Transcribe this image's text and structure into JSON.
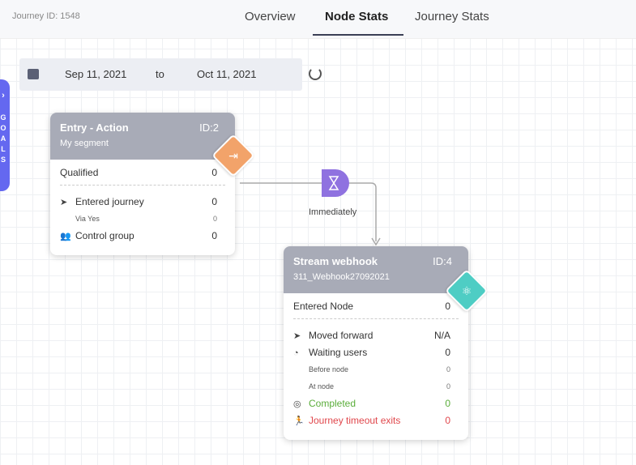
{
  "journey_id": "Journey ID: 1548",
  "tabs": [
    "Overview",
    "Node Stats",
    "Journey Stats"
  ],
  "date": {
    "from": "Sep 11, 2021",
    "to_label": "to",
    "to": "Oct 11, 2021"
  },
  "goals_label": [
    "G",
    "O",
    "A",
    "L",
    "S"
  ],
  "entry": {
    "title": "Entry - Action",
    "id": "ID:2",
    "subtitle": "My segment",
    "qualified_label": "Qualified",
    "qualified": "0",
    "entered_label": "Entered journey",
    "entered": "0",
    "via_label": "Via Yes",
    "via": "0",
    "control_label": "Control group",
    "control": "0"
  },
  "wait": {
    "label": "Immediately"
  },
  "webhook": {
    "title": "Stream webhook",
    "id": "ID:4",
    "subtitle": "311_Webhook27092021",
    "entered_label": "Entered Node",
    "entered": "0",
    "moved_label": "Moved forward",
    "moved": "N/A",
    "waiting_label": "Waiting users",
    "waiting": "0",
    "before_label": "Before node",
    "before": "0",
    "at_label": "At node",
    "at": "0",
    "completed_label": "Completed",
    "completed": "0",
    "timeout_label": "Journey timeout exits",
    "timeout": "0"
  },
  "colors": {
    "entry": "#f2a36a",
    "wait": "#8f72e0",
    "webhook": "#4ecdc4",
    "goals": "#6468f0"
  }
}
